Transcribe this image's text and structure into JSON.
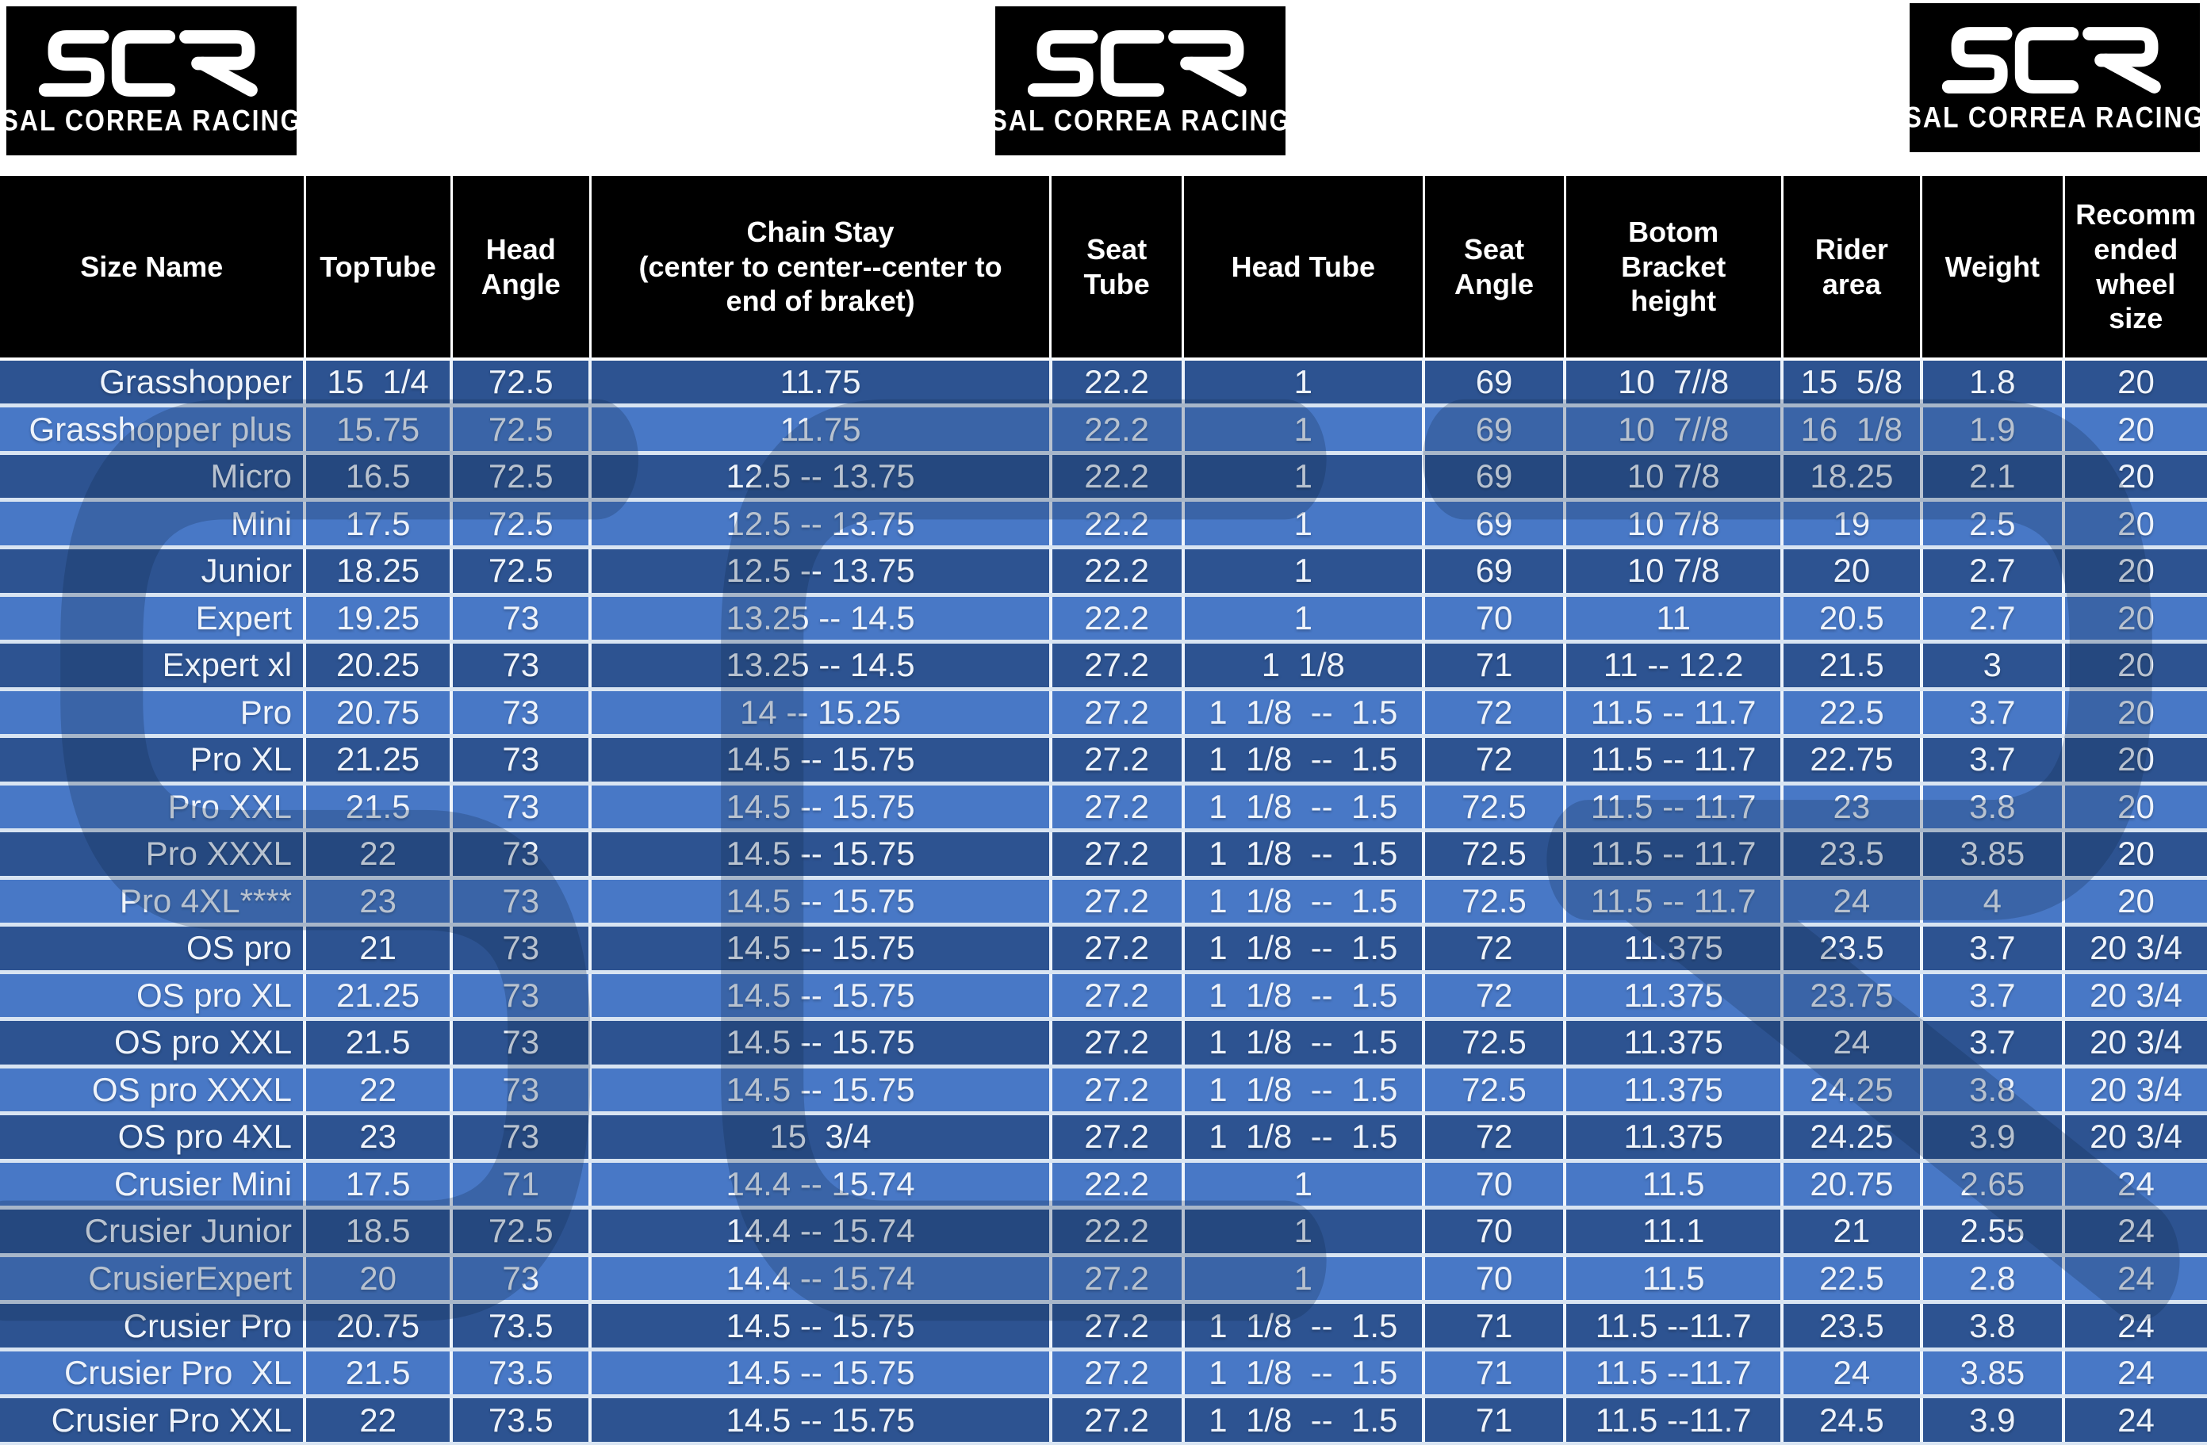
{
  "brand": {
    "logo_text": "SCR",
    "logo_subtext": "SAL CORREA RACING"
  },
  "watermark_text": "SCR",
  "colors": {
    "row_dark": "#2d5391",
    "row_light": "#4878c6",
    "header_bg": "#000000",
    "header_text": "#ffffff",
    "cell_text": "#eef3fa",
    "grid_vertical": "#eef4fb",
    "grid_horizontal": "#d8e4f2",
    "logo_bg": "#000000",
    "logo_text": "#ffffff",
    "page_bg": "#ffffff"
  },
  "table": {
    "columns": [
      "Size Name",
      "TopTube",
      "Head\nAngle",
      "Chain Stay\n(center to center--center to\nend of braket)",
      "Seat\nTube",
      "Head Tube",
      "Seat\nAngle",
      "Botom\nBracket\nheight",
      "Rider\narea",
      "Weight",
      "Recomm\nended\nwheel\nsize"
    ],
    "rows": [
      [
        "Grasshopper",
        "15  1/4",
        "72.5",
        "11.75",
        "22.2",
        "1",
        "69",
        "10  7//8",
        "15  5/8",
        "1.8",
        "20"
      ],
      [
        "Grasshopper plus",
        "15.75",
        "72.5",
        "11.75",
        "22.2",
        "1",
        "69",
        "10  7//8",
        "16  1/8",
        "1.9",
        "20"
      ],
      [
        "Micro",
        "16.5",
        "72.5",
        "12.5 -- 13.75",
        "22.2",
        "1",
        "69",
        "10 7/8",
        "18.25",
        "2.1",
        "20"
      ],
      [
        "Mini",
        "17.5",
        "72.5",
        "12.5 -- 13.75",
        "22.2",
        "1",
        "69",
        "10 7/8",
        "19",
        "2.5",
        "20"
      ],
      [
        "Junior",
        "18.25",
        "72.5",
        "12.5 -- 13.75",
        "22.2",
        "1",
        "69",
        "10 7/8",
        "20",
        "2.7",
        "20"
      ],
      [
        "Expert",
        "19.25",
        "73",
        "13.25 -- 14.5",
        "22.2",
        "1",
        "70",
        "11",
        "20.5",
        "2.7",
        "20"
      ],
      [
        "Expert xl",
        "20.25",
        "73",
        "13.25 -- 14.5",
        "27.2",
        "1  1/8",
        "71",
        "11 -- 12.2",
        "21.5",
        "3",
        "20"
      ],
      [
        "Pro",
        "20.75",
        "73",
        "14 -- 15.25",
        "27.2",
        "1  1/8  --  1.5",
        "72",
        "11.5 -- 11.7",
        "22.5",
        "3.7",
        "20"
      ],
      [
        "Pro XL",
        "21.25",
        "73",
        "14.5 -- 15.75",
        "27.2",
        "1  1/8  --  1.5",
        "72",
        "11.5 -- 11.7",
        "22.75",
        "3.7",
        "20"
      ],
      [
        "Pro XXL",
        "21.5",
        "73",
        "14.5 -- 15.75",
        "27.2",
        "1  1/8  --  1.5",
        "72.5",
        "11.5 -- 11.7",
        "23",
        "3.8",
        "20"
      ],
      [
        "Pro XXXL",
        "22",
        "73",
        "14.5 -- 15.75",
        "27.2",
        "1  1/8  --  1.5",
        "72.5",
        "11.5 -- 11.7",
        "23.5",
        "3.85",
        "20"
      ],
      [
        "Pro 4XL****",
        "23",
        "73",
        "14.5 -- 15.75",
        "27.2",
        "1  1/8  --  1.5",
        "72.5",
        "11.5 -- 11.7",
        "24",
        "4",
        "20"
      ],
      [
        "OS pro",
        "21",
        "73",
        "14.5 -- 15.75",
        "27.2",
        "1  1/8  --  1.5",
        "72",
        "11.375",
        "23.5",
        "3.7",
        "20 3/4"
      ],
      [
        "OS pro XL",
        "21.25",
        "73",
        "14.5 -- 15.75",
        "27.2",
        "1  1/8  --  1.5",
        "72",
        "11.375",
        "23.75",
        "3.7",
        "20 3/4"
      ],
      [
        "OS pro XXL",
        "21.5",
        "73",
        "14.5 -- 15.75",
        "27.2",
        "1  1/8  --  1.5",
        "72.5",
        "11.375",
        "24",
        "3.7",
        "20 3/4"
      ],
      [
        "OS pro XXXL",
        "22",
        "73",
        "14.5 -- 15.75",
        "27.2",
        "1  1/8  --  1.5",
        "72.5",
        "11.375",
        "24.25",
        "3.8",
        "20 3/4"
      ],
      [
        "OS pro 4XL",
        "23",
        "73",
        "15  3/4",
        "27.2",
        "1  1/8  --  1.5",
        "72",
        "11.375",
        "24.25",
        "3.9",
        "20 3/4"
      ],
      [
        "Crusier Mini",
        "17.5",
        "71",
        "14.4 -- 15.74",
        "22.2",
        "1",
        "70",
        "11.5",
        "20.75",
        "2.65",
        "24"
      ],
      [
        "Crusier Junior",
        "18.5",
        "72.5",
        "14.4 -- 15.74",
        "22.2",
        "1",
        "70",
        "11.1",
        "21",
        "2.55",
        "24"
      ],
      [
        "CrusierExpert",
        "20",
        "73",
        "14.4 -- 15.74",
        "27.2",
        "1",
        "70",
        "11.5",
        "22.5",
        "2.8",
        "24"
      ],
      [
        "Crusier Pro",
        "20.75",
        "73.5",
        "14.5 -- 15.75",
        "27.2",
        "1  1/8  --  1.5",
        "71",
        "11.5 --11.7",
        "23.5",
        "3.8",
        "24"
      ],
      [
        "Crusier Pro  XL",
        "21.5",
        "73.5",
        "14.5 -- 15.75",
        "27.2",
        "1  1/8  --  1.5",
        "71",
        "11.5 --11.7",
        "24",
        "3.85",
        "24"
      ],
      [
        "Crusier Pro XXL",
        "22",
        "73.5",
        "14.5 -- 15.75",
        "27.2",
        "1  1/8  --  1.5",
        "71",
        "11.5 --11.7",
        "24.5",
        "3.9",
        "24"
      ]
    ]
  }
}
